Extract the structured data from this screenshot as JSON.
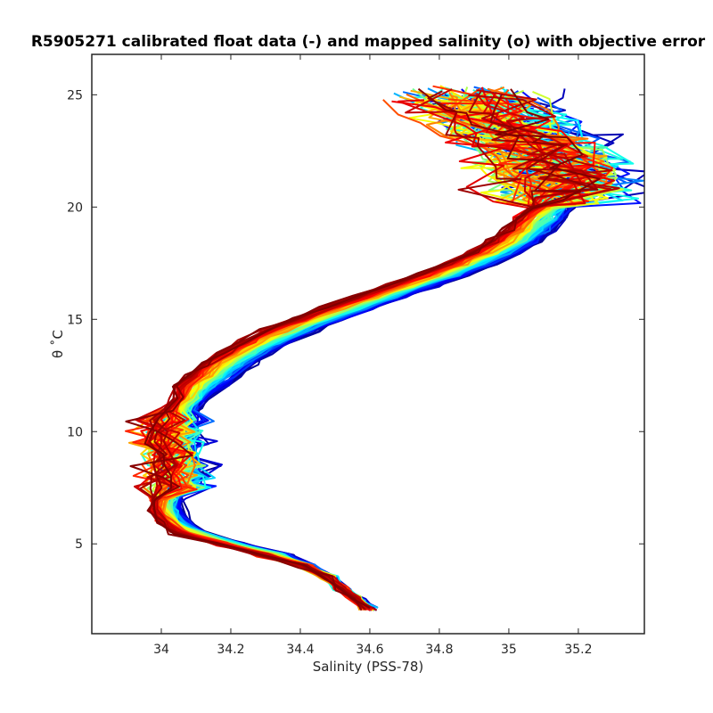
{
  "chart_data": {
    "type": "line",
    "title": "R5905271 calibrated float data (-) and mapped salinity (o) with objective error",
    "xlabel": "Salinity (PSS-78)",
    "ylabel": "θ ˚C",
    "xlim": [
      33.8,
      35.39
    ],
    "ylim": [
      1,
      26.8
    ],
    "x_ticks": [
      "34",
      "34.2",
      "34.4",
      "34.6",
      "34.8",
      "35",
      "35.2"
    ],
    "y_ticks": [
      "5",
      "10",
      "15",
      "20",
      "25"
    ],
    "grid": false,
    "legend": "none",
    "profile_count": 100,
    "colormap": "jet (blue → cyan → green → yellow → orange → red → dark red by profile)",
    "colormap_stops": [
      "#00008f",
      "#0000ff",
      "#007fff",
      "#00ffff",
      "#7fff7f",
      "#ffff00",
      "#ff7f00",
      "#ff0000",
      "#7f0000"
    ],
    "reference_profile": {
      "theta": [
        2.1,
        2.6,
        3.0,
        3.5,
        4.0,
        4.5,
        5.0,
        5.5,
        6.0,
        6.5,
        7.0,
        7.5,
        8.0,
        8.5,
        9.0,
        9.5,
        10.0,
        10.5,
        11.0,
        11.5,
        12.0,
        12.5,
        13.0,
        13.5,
        14.0,
        14.5,
        15.0,
        15.5,
        16.0,
        16.5,
        17.0,
        17.5,
        18.0,
        18.5,
        19.0,
        19.5,
        20.0,
        20.5,
        21.0,
        21.5,
        22.0,
        22.5,
        23.0,
        23.5,
        24.0,
        24.5,
        25.0
      ],
      "salinity": [
        34.6,
        34.56,
        34.52,
        34.48,
        34.42,
        34.33,
        34.2,
        34.09,
        34.04,
        34.02,
        34.02,
        34.04,
        34.05,
        34.05,
        34.04,
        34.03,
        34.03,
        34.04,
        34.06,
        34.09,
        34.12,
        34.16,
        34.2,
        34.25,
        34.31,
        34.38,
        34.46,
        34.55,
        34.64,
        34.73,
        34.82,
        34.9,
        34.97,
        35.03,
        35.07,
        35.1,
        35.13,
        35.14,
        35.15,
        35.14,
        35.12,
        35.1,
        35.05,
        35.0,
        34.96,
        34.92,
        34.88
      ]
    }
  }
}
